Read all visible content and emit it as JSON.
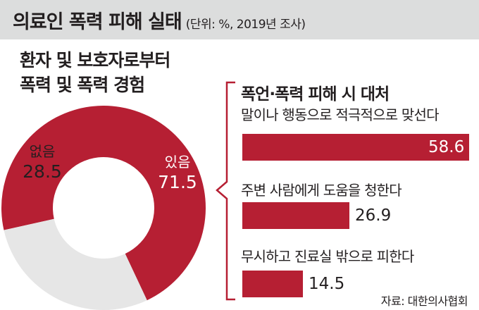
{
  "header": {
    "title": "의료인 폭력 피해 실태",
    "subtitle": "(단위: %, 2019년 조사)"
  },
  "colors": {
    "accent": "#b61f33",
    "donut_light": "#e6e6e6",
    "header_bg": "#dcdddd"
  },
  "chart_data": [
    {
      "type": "pie",
      "title_lines": [
        "환자 및 보호자로부터",
        "폭력 및 폭력 경험"
      ],
      "slices": [
        {
          "label": "있음",
          "value": 71.5,
          "value_text": "71.5",
          "color": "#b61f33"
        },
        {
          "label": "없음",
          "value": 28.5,
          "value_text": "28.5",
          "color": "#e6e6e6"
        }
      ]
    },
    {
      "type": "bar",
      "title": "폭언·폭력 피해 시 대처",
      "orientation": "horizontal",
      "categories": [
        "말이나 행동으로 적극적으로 맞선다",
        "주변 사람에게 도움을 청한다",
        "무시하고 진료실 밖으로 피한다"
      ],
      "values": [
        58.6,
        26.9,
        14.5
      ],
      "value_texts": [
        "58.6",
        "26.9",
        "14.5"
      ]
    }
  ],
  "source": "자료: 대한의사협회"
}
